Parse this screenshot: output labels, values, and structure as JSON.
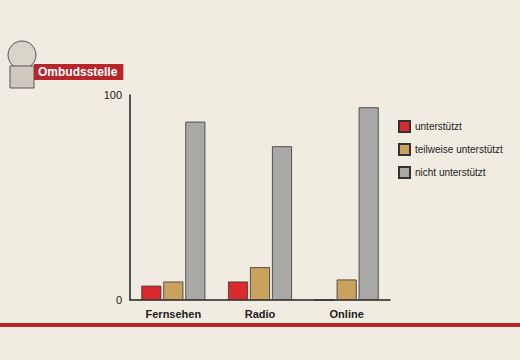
{
  "chart_data": {
    "type": "bar",
    "title": "Ombudsstelle",
    "categories": [
      "Fernsehen",
      "Radio",
      "Online"
    ],
    "series": [
      {
        "name": "unterstützt",
        "color": "#d92a2e",
        "values": [
          7,
          9,
          0
        ]
      },
      {
        "name": "teilweise unterstützt",
        "color": "#c9a35e",
        "values": [
          9,
          16,
          10
        ]
      },
      {
        "name": "nicht unterstützt",
        "color": "#a8a8a6",
        "values": [
          87,
          75,
          94
        ]
      }
    ],
    "ylim": [
      0,
      100
    ],
    "yticks": [
      0,
      100
    ],
    "grid": false,
    "legend": "right"
  }
}
